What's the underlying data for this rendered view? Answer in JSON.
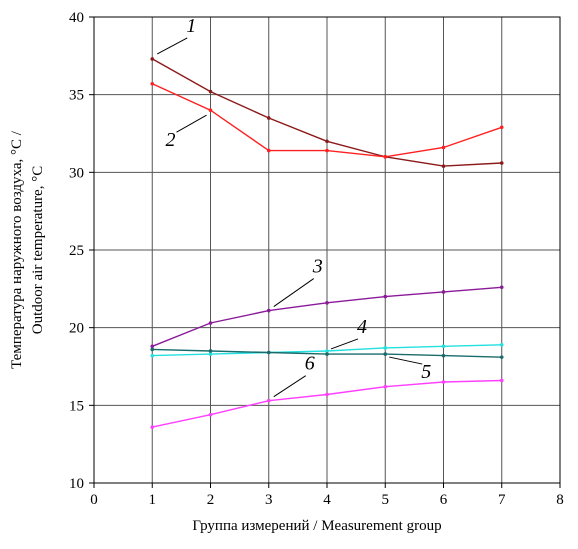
{
  "chart_data": {
    "type": "line",
    "xlabel": "Группа измерений / Measurement group",
    "ylabel_lines": [
      "Температура наружного воздуха, °C /",
      "Outdoor air temperature, °C"
    ],
    "xlim": [
      0,
      8
    ],
    "ylim": [
      10,
      40
    ],
    "x_ticks": [
      "0",
      "1",
      "2",
      "3",
      "4",
      "5",
      "6",
      "7",
      "8"
    ],
    "y_ticks": [
      "10",
      "15",
      "20",
      "25",
      "30",
      "35",
      "40"
    ],
    "grid": true,
    "legend": "none",
    "x": [
      1,
      2,
      3,
      4,
      5,
      6,
      7
    ],
    "series": [
      {
        "name": "1",
        "color": "#8b1a1a",
        "values": [
          37.3,
          35.2,
          33.5,
          32.0,
          31.0,
          30.4,
          30.6
        ]
      },
      {
        "name": "2",
        "color": "#ff2020",
        "values": [
          35.7,
          34.0,
          31.4,
          31.4,
          31.0,
          31.6,
          32.9
        ]
      },
      {
        "name": "3",
        "color": "#8b1a9b",
        "values": [
          18.8,
          20.3,
          21.1,
          21.6,
          22.0,
          22.3,
          22.6
        ]
      },
      {
        "name": "4",
        "color": "#22e0e0",
        "values": [
          18.2,
          18.3,
          18.4,
          18.5,
          18.7,
          18.8,
          18.9
        ]
      },
      {
        "name": "5",
        "color": "#1a6b6b",
        "values": [
          18.6,
          18.5,
          18.4,
          18.3,
          18.3,
          18.2,
          18.1
        ]
      },
      {
        "name": "6",
        "color": "#ff40ff",
        "values": [
          13.6,
          14.4,
          15.3,
          15.7,
          16.2,
          16.5,
          16.6
        ]
      }
    ],
    "annotations": [
      {
        "text": "1",
        "series": "1"
      },
      {
        "text": "2",
        "series": "2"
      },
      {
        "text": "3",
        "series": "3"
      },
      {
        "text": "4",
        "series": "4"
      },
      {
        "text": "5",
        "series": "5"
      },
      {
        "text": "6",
        "series": "6"
      }
    ]
  }
}
